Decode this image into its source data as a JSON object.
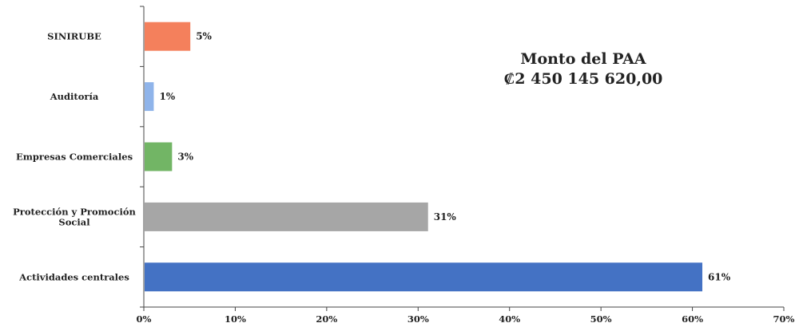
{
  "chart_data": {
    "type": "bar",
    "orientation": "horizontal",
    "categories": [
      [
        "SINIRUBE"
      ],
      [
        "Auditoría"
      ],
      [
        "Empresas Comerciales"
      ],
      [
        "Protección y Promoción",
        "Social"
      ],
      [
        "Actividades centrales"
      ]
    ],
    "values": [
      5,
      1,
      3,
      31,
      61
    ],
    "data_labels": [
      "5%",
      "1%",
      "3%",
      "31%",
      "61%"
    ],
    "colors": [
      "#f4805c",
      "#8fb4ea",
      "#72b565",
      "#a6a6a6",
      "#4472c4"
    ],
    "xlim": [
      0,
      70
    ],
    "xticks": [
      "0%",
      "10%",
      "20%",
      "30%",
      "40%",
      "50%",
      "60%",
      "70%"
    ],
    "grid": false,
    "legend": "none"
  },
  "annotation": {
    "line1": "Monto del PAA",
    "line2": "₡2 450 145 620,00"
  }
}
